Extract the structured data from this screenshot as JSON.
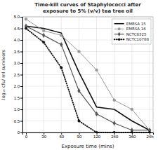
{
  "chart_data": {
    "type": "line",
    "title": "Time-kill curves of Staphylococci after\nexposure to 5% (v/v) tea tree oil",
    "x_label": "Exposure time (mins)",
    "y_label": "log₁₀ cfu/ ml survivors",
    "categories": [
      "0",
      "30",
      "60",
      "90",
      "120",
      "240",
      "360",
      "24h"
    ],
    "ylim": [
      0,
      5.0
    ],
    "yticks": [
      0,
      0.5,
      {
        "value": 1.0,
        "label": "1.0"
      },
      1.5,
      {
        "value": 2.0,
        "label": "2.0"
      },
      2.5,
      {
        "value": 3.0,
        "label": "3.0"
      },
      3.5,
      {
        "value": 4.0,
        "label": "4.0"
      },
      4.5,
      {
        "value": 5.0,
        "label": "5.0"
      }
    ],
    "grid": true,
    "legend": "upper right",
    "series": [
      {
        "name": "EMRSA 15",
        "color": "#111111",
        "marker": "none",
        "line_style": "solid",
        "values": [
          4.6,
          4.5,
          4.3,
          2.6,
          1.1,
          1.0,
          0.5,
          0.1
        ]
      },
      {
        "name": "EMRSA 16",
        "color": "#999999",
        "marker": "circle",
        "line_style": "solid",
        "values": [
          4.9,
          4.4,
          4.2,
          3.5,
          2.7,
          1.4,
          1.0,
          0.1
        ]
      },
      {
        "name": "NCTC8325",
        "color": "#555555",
        "marker": "diamond",
        "line_style": "solid",
        "values": [
          4.6,
          4.2,
          3.8,
          1.8,
          0.8,
          0.4,
          0.1,
          0.1
        ]
      },
      {
        "name": "NCTC10788",
        "color": "#111111",
        "marker": "point",
        "line_style": "dotted",
        "values": [
          4.5,
          3.9,
          2.8,
          0.5,
          0.0,
          0.0,
          0.0,
          0.0
        ]
      }
    ]
  }
}
